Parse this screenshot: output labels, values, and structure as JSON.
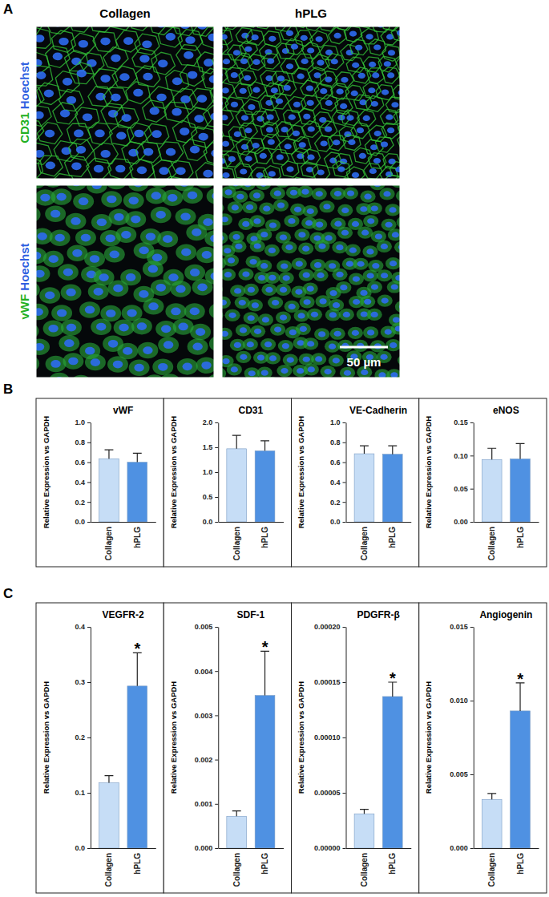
{
  "panel_labels": [
    "A",
    "B",
    "C"
  ],
  "images": {
    "columns": [
      "Collagen",
      "hPLG"
    ],
    "rows": [
      {
        "stain": "CD31",
        "counterstain": "Hoechst"
      },
      {
        "stain": "vWF",
        "counterstain": "Hoechst"
      }
    ],
    "scale_bar": "50 µm"
  },
  "chart_data": [
    {
      "type": "bar",
      "title": "vWF",
      "y_label": "Relative Expression vs GAPDH",
      "categories": [
        "Collagen",
        "hPLG"
      ],
      "values": [
        0.635,
        0.6
      ],
      "errors": [
        0.09,
        0.09
      ],
      "colors": [
        "#c6ddf6",
        "#4f91e2"
      ],
      "ylim": [
        0,
        1
      ],
      "yticks": [
        {
          "value": 0,
          "label": "0.0"
        },
        0.2,
        0.4,
        0.6,
        0.8,
        {
          "value": 1,
          "label": "1.0"
        }
      ]
    },
    {
      "type": "bar",
      "title": "CD31",
      "y_label": "Relative Expression vs GAPDH",
      "categories": [
        "Collagen",
        "hPLG"
      ],
      "values": [
        1.47,
        1.43
      ],
      "errors": [
        0.27,
        0.2
      ],
      "colors": [
        "#c6ddf6",
        "#4f91e2"
      ],
      "ylim": [
        0,
        2
      ],
      "yticks": [
        {
          "value": 0,
          "label": "0.0"
        },
        0.5,
        {
          "value": 1,
          "label": "1.0"
        },
        1.5,
        {
          "value": 2,
          "label": "2.0"
        }
      ]
    },
    {
      "type": "bar",
      "title": "VE-Cadherin",
      "y_label": "Relative Expression vs GAPDH",
      "categories": [
        "Collagen",
        "hPLG"
      ],
      "values": [
        0.685,
        0.68
      ],
      "errors": [
        0.08,
        0.085
      ],
      "colors": [
        "#c6ddf6",
        "#4f91e2"
      ],
      "ylim": [
        0,
        1
      ],
      "yticks": [
        {
          "value": 0,
          "label": "0.0"
        },
        0.2,
        0.4,
        0.6,
        0.8,
        {
          "value": 1,
          "label": "1.0"
        }
      ]
    },
    {
      "type": "bar",
      "title": "eNOS",
      "y_label": "Relative Expression vs GAPDH",
      "categories": [
        "Collagen",
        "hPLG"
      ],
      "values": [
        0.094,
        0.095
      ],
      "errors": [
        0.017,
        0.023
      ],
      "colors": [
        "#c6ddf6",
        "#4f91e2"
      ],
      "ylim": [
        0,
        0.15
      ],
      "yticks": [
        {
          "value": 0,
          "label": "0.00"
        },
        0.05,
        {
          "value": 0.1,
          "label": "0.10"
        },
        0.15
      ]
    },
    {
      "type": "bar",
      "title": "VEGFR-2",
      "y_label": "Relative Expression vs GAPDH",
      "categories": [
        "Collagen",
        "hPLG"
      ],
      "values": [
        0.118,
        0.293
      ],
      "errors": [
        0.013,
        0.06
      ],
      "colors": [
        "#c6ddf6",
        "#4f91e2"
      ],
      "ylim": [
        0,
        0.4
      ],
      "yticks": [
        {
          "value": 0,
          "label": "0.0"
        },
        0.1,
        0.2,
        0.3,
        0.4
      ],
      "annotation": {
        "text": "*",
        "category": "hPLG"
      }
    },
    {
      "type": "bar",
      "title": "SDF-1",
      "y_label": "Relative Expression vs GAPDH",
      "categories": [
        "Collagen",
        "hPLG"
      ],
      "values": [
        0.00072,
        0.00345
      ],
      "errors": [
        0.00012,
        0.001
      ],
      "colors": [
        "#c6ddf6",
        "#4f91e2"
      ],
      "ylim": [
        0,
        0.005
      ],
      "yticks": [
        {
          "value": 0,
          "label": "0.000"
        },
        0.001,
        0.002,
        0.003,
        0.004,
        0.005
      ],
      "annotation": {
        "text": "*",
        "category": "hPLG"
      }
    },
    {
      "type": "bar",
      "title": "PDGFR-β",
      "y_label": "Relative Expression vs GAPDH",
      "categories": [
        "Collagen",
        "hPLG"
      ],
      "values": [
        3.1e-05,
        0.000137
      ],
      "errors": [
        4e-06,
        1.3e-05
      ],
      "colors": [
        "#c6ddf6",
        "#4f91e2"
      ],
      "ylim": [
        0,
        0.0002
      ],
      "yticks": [
        {
          "value": 0,
          "label": "0.00000"
        },
        5e-05,
        {
          "value": 0.0001,
          "label": "0.00010"
        },
        0.00015,
        {
          "value": 0.0002,
          "label": "0.00020"
        }
      ],
      "annotation": {
        "text": "*",
        "category": "hPLG"
      }
    },
    {
      "type": "bar",
      "title": "Angiogenin",
      "y_label": "Relative Expression vs GAPDH",
      "categories": [
        "Collagen",
        "hPLG"
      ],
      "values": [
        0.0033,
        0.0093
      ],
      "errors": [
        0.0004,
        0.0019
      ],
      "colors": [
        "#c6ddf6",
        "#4f91e2"
      ],
      "ylim": [
        0,
        0.015
      ],
      "yticks": [
        {
          "value": 0,
          "label": "0.000"
        },
        0.005,
        {
          "value": 0.01,
          "label": "0.010"
        },
        0.015
      ],
      "annotation": {
        "text": "*",
        "category": "hPLG"
      }
    }
  ]
}
